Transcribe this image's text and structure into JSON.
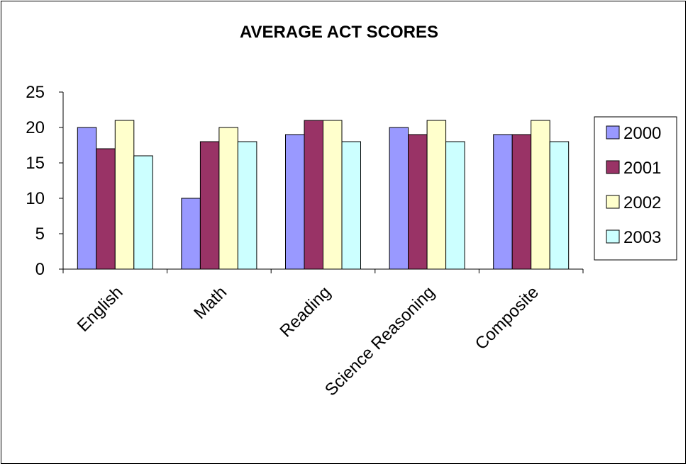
{
  "chart_data": {
    "type": "bar",
    "title": "AVERAGE ACT SCORES",
    "categories": [
      "English",
      "Math",
      "Reading",
      "Science Reasoning",
      "Composite"
    ],
    "series": [
      {
        "name": "2000",
        "color": "#9999ff",
        "values": [
          20,
          10,
          19,
          20,
          19
        ]
      },
      {
        "name": "2001",
        "color": "#993366",
        "values": [
          17,
          18,
          21,
          19,
          19
        ]
      },
      {
        "name": "2002",
        "color": "#ffffcc",
        "values": [
          21,
          20,
          21,
          21,
          21
        ]
      },
      {
        "name": "2003",
        "color": "#ccffff",
        "values": [
          16,
          18,
          18,
          18,
          18
        ]
      }
    ],
    "ylim": [
      0,
      25
    ],
    "yticks": [
      0,
      5,
      10,
      15,
      20,
      25
    ],
    "grid": false,
    "legend_position": "right"
  }
}
